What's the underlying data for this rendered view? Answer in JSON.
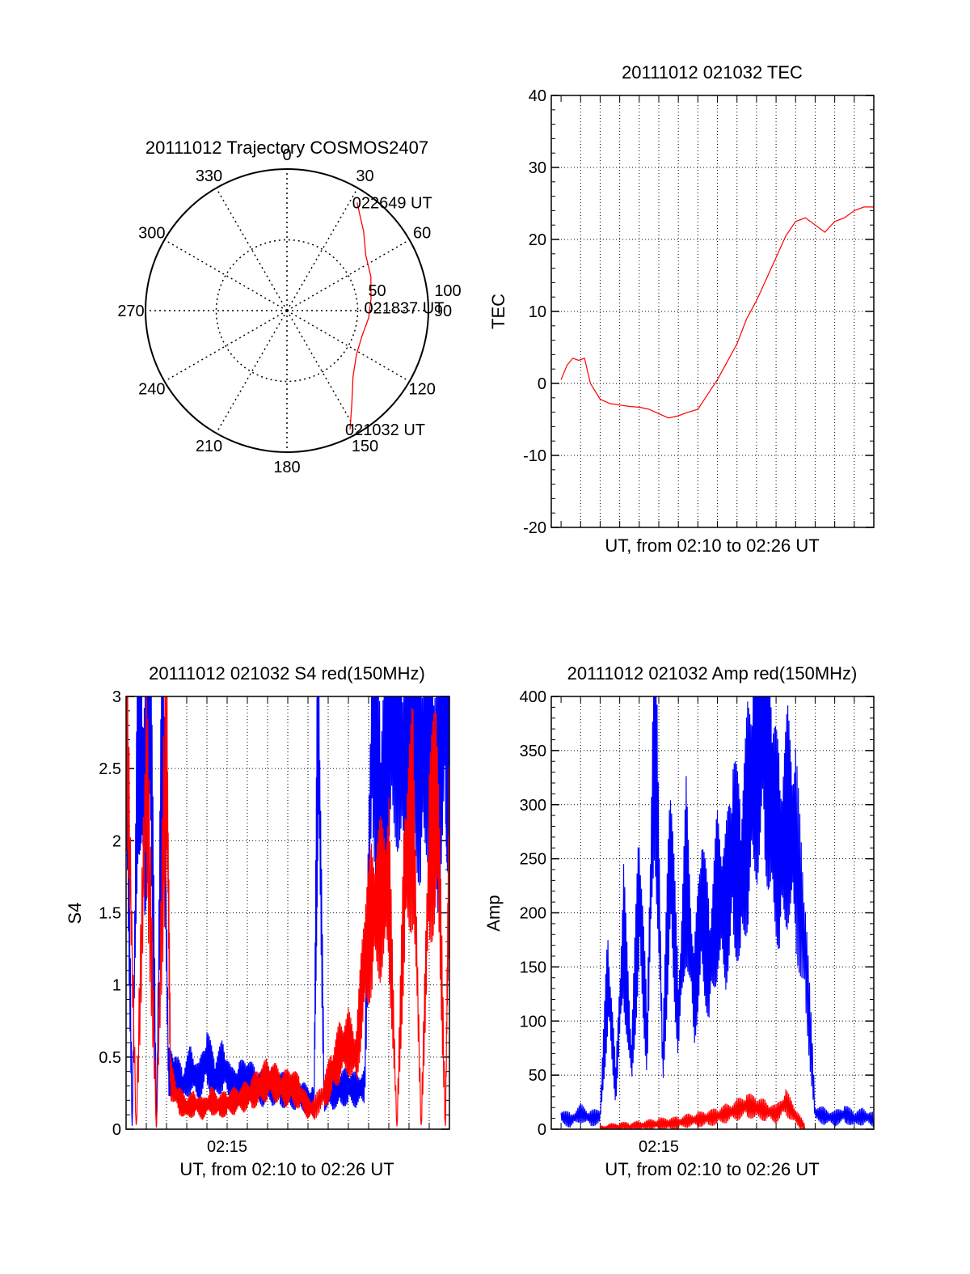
{
  "figure_title": "",
  "colors": {
    "red": "#ff0000",
    "blue": "#0000ff",
    "axis": "#000000",
    "grid": "#000000"
  },
  "chart_data": [
    {
      "type": "polar",
      "title": "20111012 Trajectory COSMOS2407",
      "angle_labels": [
        "0",
        "30",
        "60",
        "90",
        "120",
        "150",
        "180",
        "210",
        "240",
        "270",
        "300",
        "330"
      ],
      "radial_labels": [
        "50",
        "100"
      ],
      "rlim": [
        0,
        100
      ],
      "grid": true,
      "series": [
        {
          "color": "#ff0000",
          "points": [
            {
              "azimuth": 152,
              "r": 95
            },
            {
              "azimuth": 145,
              "r": 80
            },
            {
              "azimuth": 135,
              "r": 66
            },
            {
              "azimuth": 122,
              "r": 58
            },
            {
              "azimuth": 108,
              "r": 56
            },
            {
              "azimuth": 95,
              "r": 58
            },
            {
              "azimuth": 82,
              "r": 60
            },
            {
              "azimuth": 68,
              "r": 64
            },
            {
              "azimuth": 55,
              "r": 68
            },
            {
              "azimuth": 44,
              "r": 78
            },
            {
              "azimuth": 33,
              "r": 91
            }
          ]
        }
      ],
      "annotations": [
        {
          "text": "022649 UT",
          "azimuth": 33,
          "r": 91
        },
        {
          "text": "021837 UT",
          "azimuth": 88,
          "r": 58
        },
        {
          "text": "021032 UT",
          "azimuth": 152,
          "r": 95
        }
      ]
    },
    {
      "type": "line",
      "title": "20111012 021032 TEC",
      "xlabel": "UT, from 02:10 to 02:26 UT",
      "ylabel": "TEC",
      "ylim": [
        -20,
        40
      ],
      "yticks": [
        "-20",
        "-10",
        "0",
        "10",
        "20",
        "30",
        "40"
      ],
      "xticks": [],
      "grid": true,
      "series": [
        {
          "color": "#ff0000",
          "x": [
            0,
            0.3,
            0.6,
            0.9,
            1.2,
            1.5,
            2,
            2.5,
            3,
            3.5,
            4,
            4.5,
            5,
            5.5,
            6,
            6.5,
            7,
            7.5,
            8,
            8.5,
            9,
            9.5,
            10,
            10.5,
            11,
            11.5,
            12,
            12.5,
            13,
            13.5,
            14,
            14.5,
            15,
            15.5,
            16
          ],
          "y": [
            0.5,
            2.5,
            3.5,
            3.2,
            3.5,
            0,
            -2.2,
            -2.8,
            -3,
            -3.2,
            -3.3,
            -3.6,
            -4.2,
            -4.8,
            -4.5,
            -4,
            -3.6,
            -1.5,
            0.5,
            3,
            5.5,
            9,
            11.5,
            14.5,
            17.5,
            20.5,
            22.5,
            23,
            22,
            21,
            22.5,
            23,
            24,
            24.5,
            24.5
          ]
        }
      ]
    },
    {
      "type": "line",
      "title": "20111012 021032 S4 red(150MHz)",
      "xlabel": "UT, from 02:10 to 02:26 UT",
      "ylabel": "S4",
      "ylim": [
        0,
        3
      ],
      "yticks": [
        "0",
        "0.5",
        "1",
        "1.5",
        "2",
        "2.5",
        "3"
      ],
      "xticks": [
        {
          "label": "02:15",
          "x": 5
        }
      ],
      "grid": true,
      "series": [
        {
          "color": "#0000ff",
          "x": [
            0,
            0.3,
            0.6,
            0.9,
            1.2,
            1.5,
            1.8,
            2.1,
            2.4,
            2.8,
            3.2,
            3.6,
            4,
            4.4,
            4.8,
            5.2,
            5.6,
            6,
            6.4,
            6.8,
            7.2,
            7.6,
            8,
            8.4,
            8.8,
            9.2,
            9.3,
            9.5,
            9.8,
            10.2,
            10.6,
            11,
            11.4,
            11.8,
            12.2,
            12.6,
            13,
            13.4,
            13.8,
            14.2,
            14.6,
            15,
            15.4,
            15.8,
            16
          ],
          "y": [
            3,
            0,
            3,
            2.2,
            3,
            0,
            3,
            0.4,
            0.38,
            0.3,
            0.42,
            0.32,
            0.5,
            0.35,
            0.45,
            0.3,
            0.33,
            0.35,
            0.3,
            0.28,
            0.3,
            0.28,
            0.26,
            0.25,
            0.22,
            0.2,
            0.18,
            3,
            0.22,
            0.25,
            0.28,
            0.3,
            0.27,
            0.3,
            3,
            2.2,
            2.7,
            3,
            2.4,
            3,
            2.5,
            2.9,
            2.3,
            3,
            2.6
          ]
        },
        {
          "color": "#ff0000",
          "x": [
            0,
            0.5,
            1,
            1.5,
            2,
            2.2,
            2.6,
            3,
            3.4,
            3.8,
            4.2,
            4.6,
            5,
            5.4,
            5.8,
            6.2,
            6.6,
            7,
            7.4,
            7.8,
            8.2,
            8.6,
            9,
            9.3,
            9.8,
            10.2,
            10.6,
            11,
            11.4,
            11.8,
            12.2,
            12.6,
            13,
            13.4,
            13.8,
            14.2,
            14.6,
            15,
            15.4,
            15.8,
            16
          ],
          "y": [
            3,
            0,
            2.5,
            0,
            2.8,
            0.35,
            0.2,
            0.15,
            0.18,
            0.14,
            0.2,
            0.16,
            0.18,
            0.2,
            0.22,
            0.25,
            0.3,
            0.35,
            0.32,
            0.28,
            0.3,
            0.25,
            0.15,
            0.14,
            0.25,
            0.4,
            0.55,
            0.6,
            0.5,
            1.2,
            1.5,
            1.6,
            1.7,
            0,
            1.8,
            2.2,
            0,
            1.9,
            2.3,
            0,
            2.2
          ]
        }
      ]
    },
    {
      "type": "line",
      "title": "20111012 021032 Amp red(150MHz)",
      "xlabel": "UT, from 02:10 to 02:26 UT",
      "ylabel": "Amp",
      "ylim": [
        0,
        400
      ],
      "yticks": [
        "0",
        "50",
        "100",
        "150",
        "200",
        "250",
        "300",
        "350",
        "400"
      ],
      "xticks": [
        {
          "label": "02:15",
          "x": 5
        }
      ],
      "grid": true,
      "series": [
        {
          "color": "#0000ff",
          "x": [
            0,
            0.5,
            1,
            1.5,
            2,
            2.4,
            2.8,
            3.2,
            3.6,
            4,
            4.4,
            4.8,
            5.2,
            5.6,
            6,
            6.4,
            6.8,
            7.2,
            7.6,
            8,
            8.4,
            8.8,
            9.2,
            9.6,
            10,
            10.4,
            10.8,
            11.2,
            11.6,
            12,
            12.5,
            13,
            13.5,
            14,
            14.5,
            15,
            15.5,
            16
          ],
          "y": [
            12,
            8,
            15,
            10,
            12,
            140,
            40,
            180,
            60,
            220,
            80,
            388,
            60,
            260,
            100,
            240,
            120,
            210,
            150,
            220,
            200,
            260,
            230,
            300,
            350,
            380,
            300,
            250,
            290,
            260,
            160,
            15,
            12,
            10,
            14,
            10,
            12,
            9
          ]
        },
        {
          "color": "#ff0000",
          "x": [
            2,
            2.5,
            3,
            3.5,
            4,
            4.5,
            5,
            5.5,
            6,
            6.5,
            7,
            7.5,
            8,
            8.5,
            9,
            9.5,
            10,
            10.5,
            11,
            11.5,
            12,
            12.5
          ],
          "y": [
            0,
            1,
            2,
            2,
            3,
            4,
            5,
            5,
            6,
            8,
            9,
            10,
            12,
            15,
            18,
            22,
            20,
            17,
            14,
            25,
            12,
            0
          ]
        }
      ]
    }
  ]
}
